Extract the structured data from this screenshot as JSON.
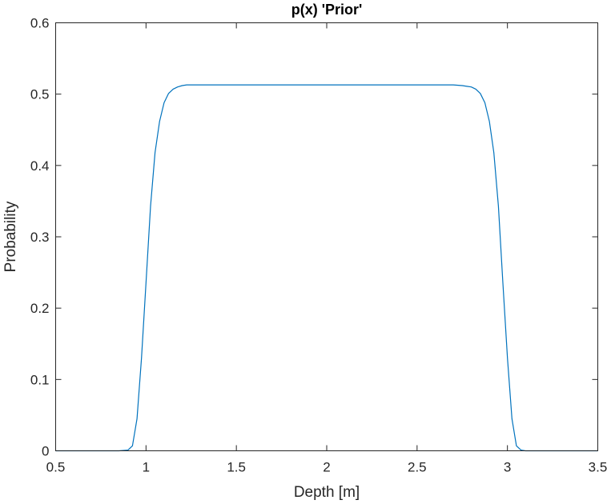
{
  "chart_data": {
    "type": "line",
    "title": "p(x) 'Prior'",
    "xlabel": "Depth [m]",
    "ylabel": "Probability",
    "xlim": [
      0.5,
      3.5
    ],
    "ylim": [
      0,
      0.6
    ],
    "xticks": [
      0.5,
      1,
      1.5,
      2,
      2.5,
      3,
      3.5
    ],
    "xtick_labels": [
      "0.5",
      "1",
      "1.5",
      "2",
      "2.5",
      "3",
      "3.5"
    ],
    "yticks": [
      0,
      0.1,
      0.2,
      0.3,
      0.4,
      0.5,
      0.6
    ],
    "ytick_labels": [
      "0",
      "0.1",
      "0.2",
      "0.3",
      "0.4",
      "0.5",
      "0.6"
    ],
    "grid": false,
    "box": true,
    "series": [
      {
        "color": "#0072BD",
        "x": [
          0.5,
          0.6,
          0.7,
          0.8,
          0.85,
          0.9,
          0.925,
          0.95,
          0.975,
          1.0,
          1.025,
          1.05,
          1.075,
          1.1,
          1.125,
          1.15,
          1.175,
          1.2,
          1.225,
          1.25,
          1.3,
          1.4,
          1.5,
          2.0,
          2.5,
          2.6,
          2.7,
          2.75,
          2.775,
          2.8,
          2.825,
          2.85,
          2.875,
          2.9,
          2.925,
          2.95,
          2.975,
          3.0,
          3.025,
          3.05,
          3.075,
          3.1,
          3.15,
          3.2,
          3.3,
          3.4,
          3.5
        ],
        "y": [
          0,
          0,
          0,
          0,
          0,
          0.001,
          0.007,
          0.045,
          0.13,
          0.235,
          0.343,
          0.418,
          0.462,
          0.488,
          0.501,
          0.507,
          0.51,
          0.512,
          0.513,
          0.513,
          0.513,
          0.513,
          0.513,
          0.513,
          0.513,
          0.513,
          0.513,
          0.512,
          0.511,
          0.51,
          0.507,
          0.501,
          0.488,
          0.462,
          0.418,
          0.343,
          0.235,
          0.13,
          0.045,
          0.007,
          0.001,
          0,
          0,
          0,
          0,
          0,
          0
        ]
      }
    ]
  }
}
